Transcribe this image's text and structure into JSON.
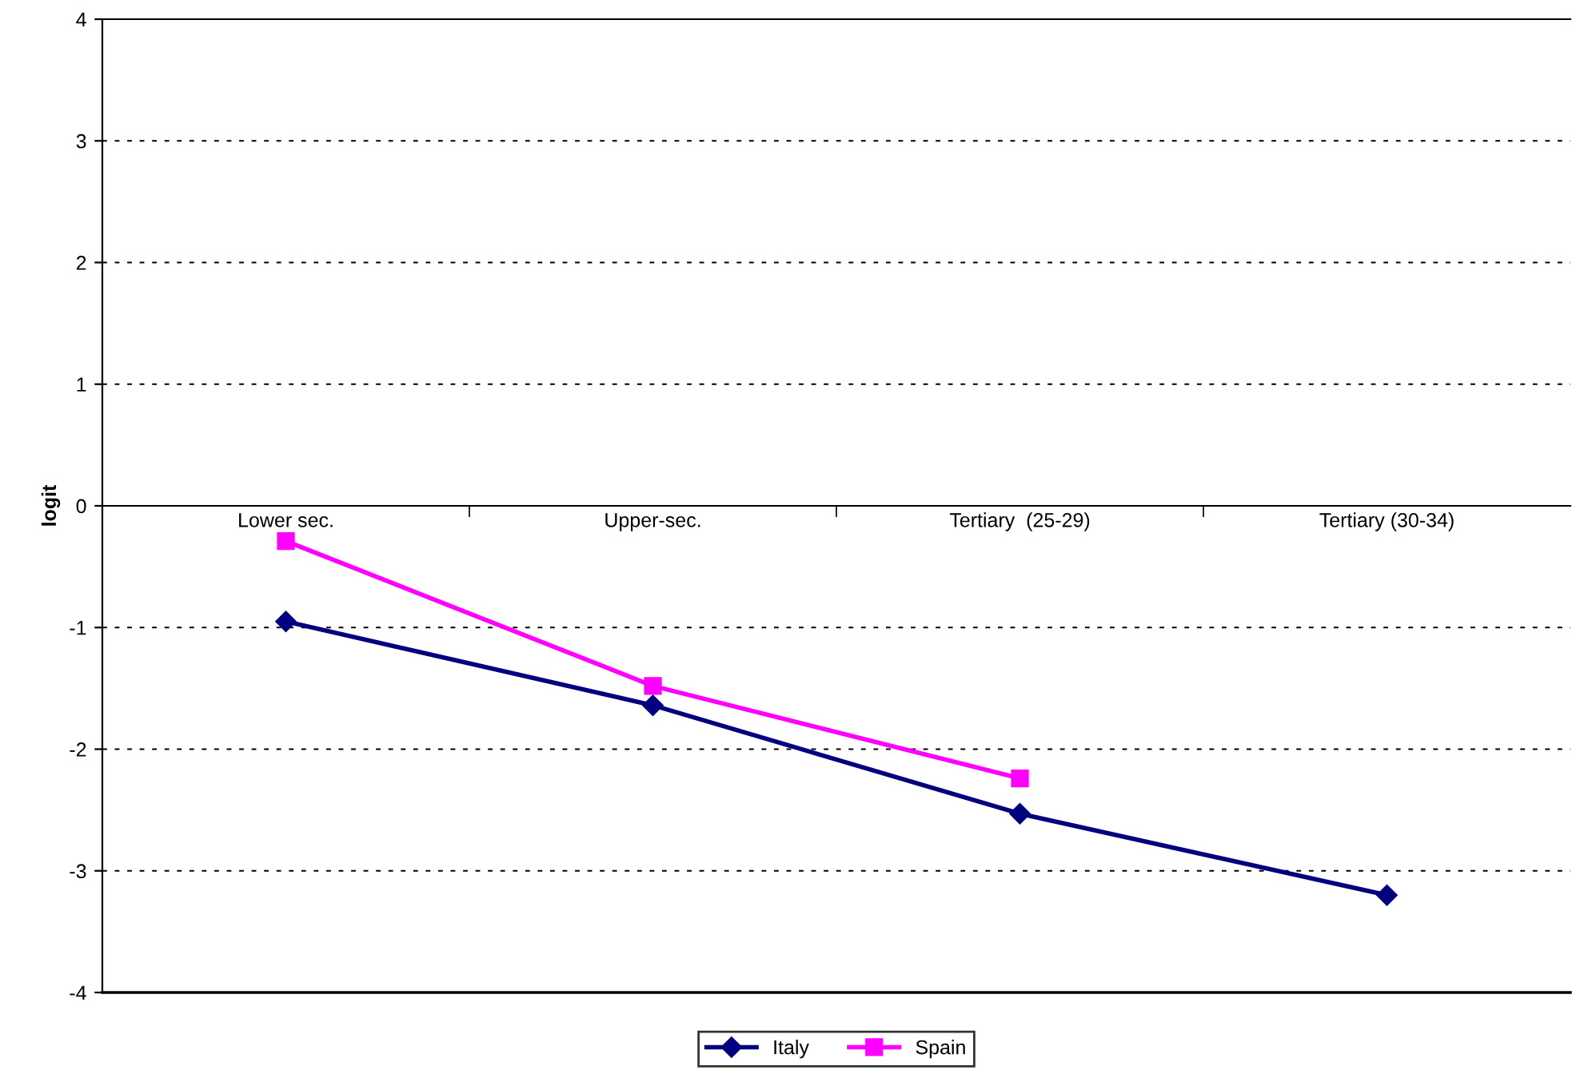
{
  "chart_data": {
    "type": "line",
    "ylabel": "logit",
    "categories": [
      "Lower sec.",
      "Upper-sec.",
      "Tertiary  (25-29)",
      "Tertiary (30-34)"
    ],
    "series": [
      {
        "name": "Italy",
        "color": "#000080",
        "marker": "diamond",
        "values": [
          -0.95,
          -1.64,
          -2.53,
          -3.2
        ]
      },
      {
        "name": "Spain",
        "color": "#ff00ff",
        "marker": "square",
        "values": [
          -0.29,
          -1.48,
          -2.24,
          null
        ]
      }
    ],
    "ylim": [
      -4,
      4
    ],
    "yticks": [
      -4,
      -3,
      -2,
      -1,
      0,
      1,
      2,
      3,
      4
    ],
    "grid": "y",
    "legend": "bottom",
    "line_style": "solid"
  }
}
